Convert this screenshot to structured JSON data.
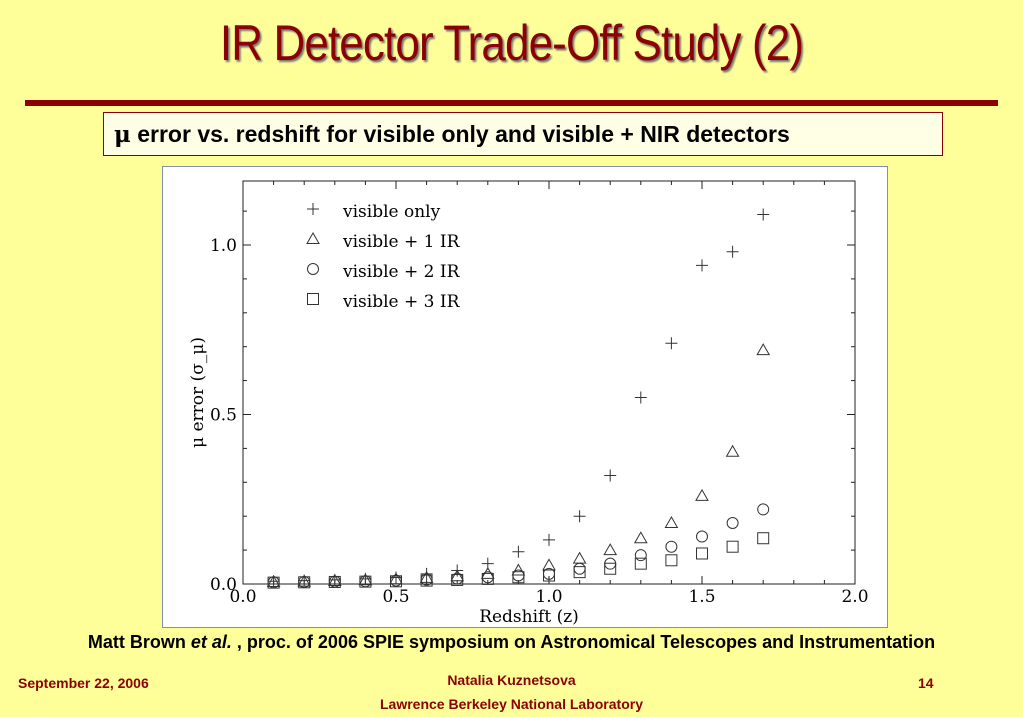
{
  "slide": {
    "title": "IR Detector Trade-Off Study (2)",
    "subtitle_symbol": "μ",
    "subtitle_text": " error vs. redshift for visible only and visible + NIR detectors",
    "citation_author": "Matt Brown ",
    "citation_etal": "et al.",
    "citation_rest": " , proc. of 2006 SPIE symposium on Astronomical Telescopes and Instrumentation",
    "footer_date": "September 22, 2006",
    "footer_name": "Natalia Kuznetsova",
    "footer_lab": "Lawrence Berkeley National Laboratory",
    "footer_page": "14",
    "colors": {
      "background": "#ffff99",
      "accent": "#8b0000"
    }
  },
  "chart_data": {
    "type": "scatter",
    "title": "",
    "xlabel": "Redshift (z)",
    "ylabel": "μ error (σ_μ)",
    "xlim": [
      0.0,
      2.0
    ],
    "ylim": [
      0.0,
      1.1
    ],
    "x_ticks": [
      "0.0",
      "0.5",
      "1.0",
      "1.5",
      "2.0"
    ],
    "y_ticks": [
      "0.0",
      "0.5",
      "1.0"
    ],
    "grid": false,
    "legend": "top-left",
    "x": [
      0.1,
      0.2,
      0.3,
      0.4,
      0.5,
      0.6,
      0.7,
      0.8,
      0.9,
      1.0,
      1.1,
      1.2,
      1.3,
      1.4,
      1.5,
      1.6,
      1.7
    ],
    "series": [
      {
        "name": "visible only",
        "marker": "plus",
        "values": [
          0.008,
          0.01,
          0.012,
          0.015,
          0.019,
          0.03,
          0.04,
          0.06,
          0.095,
          0.13,
          0.2,
          0.32,
          0.55,
          0.71,
          0.94,
          0.98,
          1.09
        ]
      },
      {
        "name": "visible + 1 IR",
        "marker": "triangle",
        "values": [
          0.006,
          0.007,
          0.009,
          0.011,
          0.014,
          0.018,
          0.023,
          0.03,
          0.04,
          0.055,
          0.075,
          0.1,
          0.135,
          0.18,
          0.26,
          0.39,
          0.69
        ]
      },
      {
        "name": "visible + 2 IR",
        "marker": "circle",
        "values": [
          0.005,
          0.006,
          0.007,
          0.008,
          0.01,
          0.013,
          0.016,
          0.02,
          0.025,
          0.03,
          0.045,
          0.06,
          0.085,
          0.11,
          0.14,
          0.18,
          0.22
        ]
      },
      {
        "name": "visible + 3 IR",
        "marker": "square",
        "values": [
          0.004,
          0.005,
          0.006,
          0.007,
          0.008,
          0.01,
          0.012,
          0.015,
          0.02,
          0.025,
          0.035,
          0.045,
          0.06,
          0.07,
          0.09,
          0.11,
          0.135
        ]
      }
    ]
  }
}
